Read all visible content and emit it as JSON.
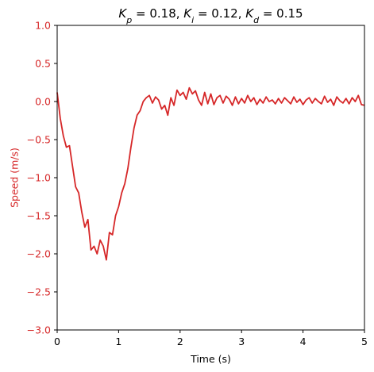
{
  "chart_data": {
    "type": "line",
    "title": "K_p = 0.18, K_i = 0.12, K_d = 0.15",
    "title_parts": {
      "kp_value": "0.18",
      "ki_value": "0.12",
      "kd_value": "0.15"
    },
    "xlabel": "Time (s)",
    "ylabel": "Speed (m/s)",
    "xlim": [
      0,
      5
    ],
    "ylim": [
      -3.0,
      1.0
    ],
    "xticks": [
      0,
      1,
      2,
      3,
      4,
      5
    ],
    "xtick_labels": [
      "0",
      "1",
      "2",
      "3",
      "4",
      "5"
    ],
    "yticks": [
      1.0,
      0.5,
      0.0,
      -0.5,
      -1.0,
      -1.5,
      -2.0,
      -2.5,
      -3.0
    ],
    "ytick_labels": [
      "1.0",
      "0.5",
      "0.0",
      "−0.5",
      "−1.0",
      "−1.5",
      "−2.0",
      "−2.5",
      "−3.0"
    ],
    "grid": false,
    "colors": {
      "line": "#d62728",
      "ylabel": "#d62728",
      "yticks": "#d62728",
      "axes": "#000000"
    },
    "series": [
      {
        "x": [
          0,
          0.05,
          0.1,
          0.15,
          0.2,
          0.25,
          0.3,
          0.35,
          0.4,
          0.45,
          0.5,
          0.55,
          0.6,
          0.65,
          0.7,
          0.75,
          0.8,
          0.85,
          0.9,
          0.95,
          1.0,
          1.05,
          1.1,
          1.15,
          1.2,
          1.25,
          1.3,
          1.35,
          1.4,
          1.45,
          1.5,
          1.55,
          1.6,
          1.65,
          1.7,
          1.75,
          1.8,
          1.85,
          1.9,
          1.95,
          2.0,
          2.05,
          2.1,
          2.15,
          2.2,
          2.25,
          2.3,
          2.35,
          2.4,
          2.45,
          2.5,
          2.55,
          2.6,
          2.65,
          2.7,
          2.75,
          2.8,
          2.85,
          2.9,
          2.95,
          3.0,
          3.05,
          3.1,
          3.15,
          3.2,
          3.25,
          3.3,
          3.35,
          3.4,
          3.45,
          3.5,
          3.55,
          3.6,
          3.65,
          3.7,
          3.75,
          3.8,
          3.85,
          3.9,
          3.95,
          4.0,
          4.05,
          4.1,
          4.15,
          4.2,
          4.25,
          4.3,
          4.35,
          4.4,
          4.45,
          4.5,
          4.55,
          4.6,
          4.65,
          4.7,
          4.75,
          4.8,
          4.85,
          4.9,
          4.95,
          5.0
        ],
        "y": [
          0.12,
          -0.22,
          -0.45,
          -0.6,
          -0.58,
          -0.85,
          -1.12,
          -1.2,
          -1.45,
          -1.65,
          -1.55,
          -1.95,
          -1.9,
          -2.0,
          -1.82,
          -1.9,
          -2.08,
          -1.72,
          -1.75,
          -1.5,
          -1.38,
          -1.2,
          -1.08,
          -0.88,
          -0.6,
          -0.35,
          -0.18,
          -0.12,
          0.0,
          0.05,
          0.08,
          -0.02,
          0.06,
          0.02,
          -0.1,
          -0.05,
          -0.18,
          0.05,
          -0.05,
          0.15,
          0.08,
          0.12,
          0.03,
          0.18,
          0.1,
          0.14,
          0.02,
          -0.05,
          0.12,
          -0.03,
          0.1,
          -0.04,
          0.05,
          0.08,
          -0.02,
          0.07,
          0.03,
          -0.05,
          0.06,
          -0.03,
          0.04,
          -0.02,
          0.08,
          0.0,
          0.05,
          -0.04,
          0.03,
          -0.02,
          0.06,
          0.0,
          0.02,
          -0.03,
          0.04,
          -0.02,
          0.05,
          0.01,
          -0.03,
          0.06,
          -0.01,
          0.03,
          -0.04,
          0.02,
          0.05,
          -0.02,
          0.04,
          0.0,
          -0.03,
          0.07,
          -0.01,
          0.03,
          -0.05,
          0.06,
          0.01,
          -0.02,
          0.04,
          -0.03,
          0.05,
          0.0,
          0.08,
          -0.04,
          -0.05
        ]
      }
    ]
  }
}
